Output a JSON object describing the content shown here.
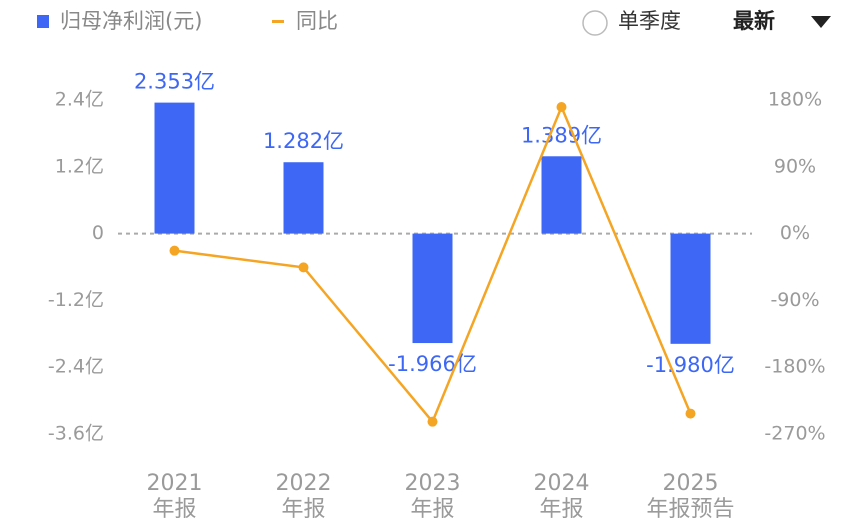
{
  "chart_data": {
    "type": "bar-line",
    "legend": {
      "bar": "归母净利润(元)",
      "line": "同比"
    },
    "controls": {
      "toggle": "单季度",
      "dropdown": "最新"
    },
    "categories": [
      "2021",
      "2022",
      "2023",
      "2024",
      "2025"
    ],
    "category_sublabels": [
      "年报",
      "年报",
      "年报",
      "年报",
      "年报预告"
    ],
    "series": [
      {
        "name": "归母净利润(元)",
        "color": "#3d67f4",
        "values": [
          2.353,
          1.282,
          -1.966,
          1.389,
          -1.98
        ],
        "value_labels": [
          "2.353亿",
          "1.282亿",
          "-1.966亿",
          "1.389亿",
          "-1.980亿"
        ]
      },
      {
        "name": "同比",
        "color": "#f5a524",
        "axis": "y2",
        "values": [
          -23,
          -45.5,
          -253.4,
          170.6,
          -242.5
        ]
      }
    ],
    "ylim": [
      -3.6,
      2.4
    ],
    "yticks": [
      {
        "value": 2.4,
        "label": "2.4亿"
      },
      {
        "value": 1.2,
        "label": "1.2亿"
      },
      0,
      {
        "value": -1.2,
        "label": "-1.2亿"
      },
      {
        "value": -2.4,
        "label": "-2.4亿"
      },
      {
        "value": -3.6,
        "label": "-3.6亿"
      }
    ],
    "y2lim": [
      -270,
      180
    ],
    "y2ticks": [
      {
        "value": 180,
        "label": "180%"
      },
      {
        "value": 90,
        "label": "90%"
      },
      {
        "value": 0,
        "label": "0%"
      },
      {
        "value": -90,
        "label": "-90%"
      },
      {
        "value": -180,
        "label": "-180%"
      },
      {
        "value": -270,
        "label": "-270%"
      }
    ]
  }
}
